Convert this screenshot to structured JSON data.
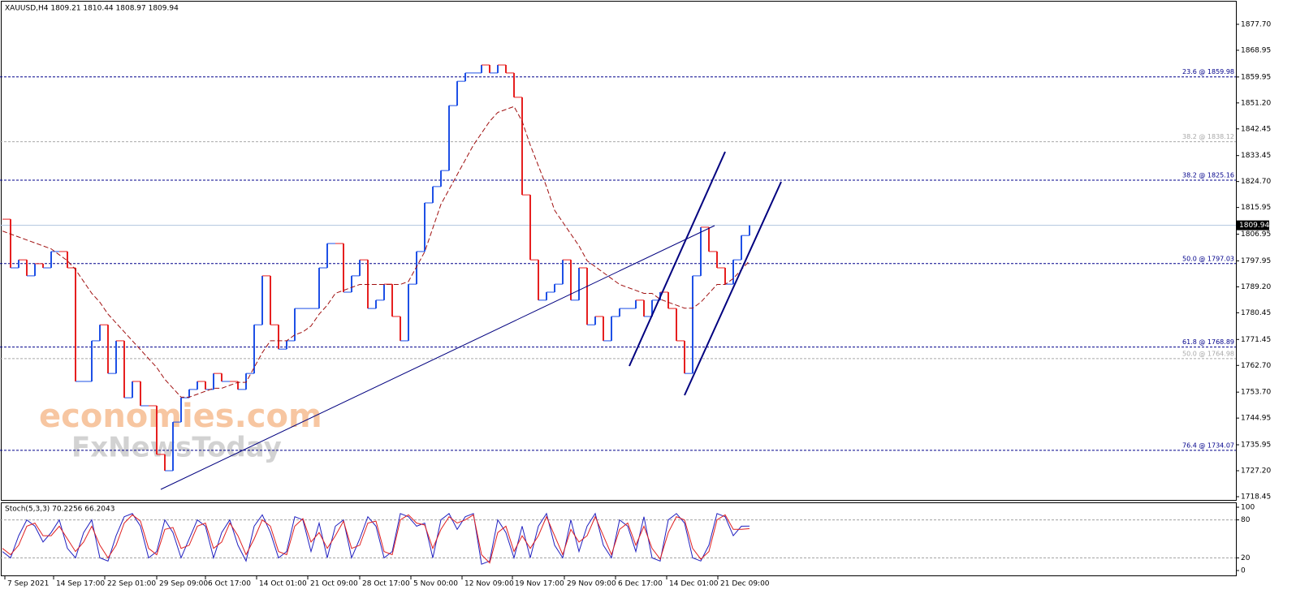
{
  "chart_data": [
    {
      "type": "line",
      "title": "XAUUSD,H4  1809.21 1810.44 1808.97 1809.94",
      "annotations": [
        "economies.com",
        "FxNewsToday"
      ],
      "x": [
        0,
        1,
        2,
        3,
        4,
        5,
        6,
        7,
        8,
        9,
        10,
        11,
        12,
        13,
        14,
        15,
        16,
        17,
        18,
        19,
        20,
        21,
        22,
        23,
        24,
        25,
        26,
        27,
        28,
        29,
        30,
        31,
        32,
        33,
        34,
        35,
        36,
        37,
        38,
        39,
        40,
        41,
        42,
        43,
        44,
        45,
        46,
        47,
        48,
        49,
        50,
        51,
        52,
        53,
        54,
        55,
        56,
        57,
        58,
        59,
        60,
        61,
        62,
        63,
        64,
        65,
        66,
        67,
        68,
        69,
        70,
        71,
        72,
        73,
        74,
        75,
        76,
        77,
        78,
        79,
        80,
        81,
        82,
        83,
        84,
        85,
        86,
        87,
        88,
        89,
        90,
        91,
        92
      ],
      "xlim": [
        -0.3,
        151.9
      ],
      "xticks": [
        {
          "value": 0.3,
          "label": "7 Sep 2021"
        },
        {
          "value": 6.3,
          "label": "14 Sep 17:00"
        },
        {
          "value": 12.6,
          "label": "22 Sep 01:00"
        },
        {
          "value": 19,
          "label": "29 Sep 09:00"
        },
        {
          "value": 25,
          "label": "6 Oct 17:00"
        },
        {
          "value": 31.3,
          "label": "14 Oct 01:00"
        },
        {
          "value": 37.6,
          "label": "21 Oct 09:00"
        },
        {
          "value": 44,
          "label": "28 Oct 17:00"
        },
        {
          "value": 50.3,
          "label": "5 Nov 00:00"
        },
        {
          "value": 56.6,
          "label": "12 Nov 09:00"
        },
        {
          "value": 62.8,
          "label": "19 Nov 17:00"
        },
        {
          "value": 69.2,
          "label": "29 Nov 09:00"
        },
        {
          "value": 75.5,
          "label": "6 Dec 17:00"
        },
        {
          "value": 81.8,
          "label": "14 Dec 01:00"
        },
        {
          "value": 88.1,
          "label": "21 Dec 09:00"
        }
      ],
      "ylim": [
        1717.08,
        1885.9
      ],
      "yticks": [
        {
          "value": 1877.7,
          "label": "1877.70"
        },
        1868.95,
        1859.95,
        {
          "value": 1851.2,
          "label": "1851.20"
        },
        1842.45,
        1833.45,
        {
          "value": 1824.7,
          "label": "1824.70"
        },
        1815.95,
        1806.95,
        1797.95,
        {
          "value": 1789.2,
          "label": "1789.20"
        },
        1780.45,
        1771.45,
        {
          "value": 1762.7,
          "label": "1762.70"
        },
        {
          "value": 1753.7,
          "label": "1753.70"
        },
        1744.95,
        1735.95,
        {
          "value": 1727.2,
          "label": "1727.20"
        },
        1718.45
      ],
      "series": [
        {
          "style": "bars",
          "up_color": "#1e50e6",
          "down_color": "#e62020",
          "values": [
            1812.0,
            1795.6,
            1798.3,
            1792.9,
            1797.0,
            1795.6,
            1801.1,
            1801.1,
            1795.6,
            1757.3,
            1757.3,
            1771.0,
            1776.4,
            1760.0,
            1771.0,
            1751.8,
            1757.3,
            1749.1,
            1749.1,
            1732.7,
            1727.2,
            1743.6,
            1751.8,
            1754.6,
            1757.3,
            1754.6,
            1760.0,
            1757.3,
            1757.3,
            1754.6,
            1760.0,
            1776.4,
            1792.9,
            1776.4,
            1768.2,
            1771.0,
            1781.9,
            1781.9,
            1781.9,
            1795.6,
            1803.8,
            1803.8,
            1787.4,
            1792.9,
            1798.3,
            1781.9,
            1784.7,
            1790.1,
            1779.2,
            1771.0,
            1790.1,
            1801.1,
            1817.5,
            1823.0,
            1828.4,
            1850.3,
            1858.5,
            1861.3,
            1861.3,
            1864.0,
            1861.3,
            1864.0,
            1861.3,
            1853.1,
            1820.2,
            1798.3,
            1784.7,
            1787.4,
            1790.1,
            1798.3,
            1784.7,
            1795.6,
            1776.4,
            1779.2,
            1771.0,
            1779.2,
            1781.9,
            1781.9,
            1784.7,
            1779.2,
            1784.7,
            1787.4,
            1781.9,
            1771.0,
            1760.0,
            1792.9,
            1809.3,
            1801.1,
            1795.6,
            1790.1,
            1798.3,
            1806.5,
            1809.94
          ]
        },
        {
          "style": "dashed",
          "color": "#a01010",
          "values": [
            1808,
            1807,
            1806,
            1805,
            1804,
            1803,
            1802,
            1800,
            1798,
            1795,
            1791,
            1787,
            1784,
            1780,
            1777,
            1774,
            1771,
            1768,
            1765,
            1762,
            1758,
            1755,
            1752,
            1752,
            1753,
            1754,
            1755,
            1755,
            1756,
            1757,
            1757,
            1762,
            1767,
            1771,
            1771,
            1771,
            1773,
            1774,
            1776,
            1780,
            1783,
            1787,
            1788,
            1789,
            1790,
            1790,
            1790,
            1790,
            1790,
            1790,
            1791,
            1796,
            1801,
            1809,
            1817,
            1822,
            1827,
            1832,
            1837,
            1841,
            1845,
            1848,
            1849,
            1850,
            1845,
            1837,
            1830,
            1823,
            1815,
            1811,
            1807,
            1803,
            1798,
            1796,
            1794,
            1792,
            1790,
            1789,
            1788,
            1787,
            1787,
            1785,
            1784,
            1783,
            1782,
            1782,
            1784,
            1787,
            1790,
            1790,
            1792,
            1795,
            1798
          ]
        }
      ],
      "levels": [
        {
          "value": 1859.98,
          "label": "23.6 @ 1859.98",
          "color": "#00008b"
        },
        {
          "value": 1838.12,
          "label": "38.2 @ 1838.12",
          "color": "#a9a9a9"
        },
        {
          "value": 1825.16,
          "label": "38.2 @ 1825.16",
          "color": "#00008b"
        },
        {
          "value": 1797.03,
          "label": "50.0 @ 1797.03",
          "color": "#00008b"
        },
        {
          "value": 1768.89,
          "label": "61.8 @ 1768.89",
          "color": "#00008b"
        },
        {
          "value": 1764.98,
          "label": "50.0 @ 1764.98",
          "color": "#a9a9a9"
        },
        {
          "value": 1734.07,
          "label": "76.4 @ 1734.07",
          "color": "#00008b"
        }
      ],
      "last": {
        "value": 1809.94,
        "label": "1809.94"
      }
    },
    {
      "type": "line",
      "title": "Stoch(5,3,3) 70.2256 66.2043",
      "ylim": [
        -9,
        106.4
      ],
      "yticks": [
        100,
        80,
        20,
        0
      ],
      "levels": [
        {
          "value": 80,
          "color": "#a0a0a0"
        },
        {
          "value": 20,
          "color": "#a0a0a0"
        }
      ],
      "series": [
        {
          "style": "solid",
          "color": "#2020c0",
          "values": [
            30,
            20,
            55,
            80,
            70,
            45,
            60,
            80,
            35,
            20,
            60,
            80,
            20,
            15,
            55,
            85,
            90,
            70,
            20,
            30,
            80,
            60,
            20,
            50,
            80,
            70,
            20,
            60,
            80,
            40,
            15,
            70,
            88,
            60,
            20,
            30,
            85,
            80,
            30,
            75,
            20,
            70,
            80,
            20,
            50,
            85,
            70,
            20,
            30,
            90,
            85,
            70,
            75,
            20,
            80,
            90,
            65,
            85,
            90,
            10,
            15,
            80,
            60,
            20,
            70,
            20,
            70,
            90,
            40,
            20,
            80,
            30,
            70,
            90,
            40,
            20,
            80,
            70,
            30,
            85,
            20,
            15,
            80,
            90,
            75,
            20,
            15,
            40,
            90,
            85,
            55,
            70,
            70.2256
          ]
        },
        {
          "style": "solid",
          "color": "#e02020",
          "values": [
            35,
            25,
            40,
            70,
            75,
            55,
            55,
            70,
            50,
            30,
            45,
            70,
            40,
            20,
            40,
            75,
            88,
            78,
            35,
            25,
            65,
            68,
            35,
            40,
            70,
            75,
            35,
            45,
            75,
            55,
            25,
            50,
            80,
            70,
            30,
            25,
            70,
            82,
            45,
            60,
            35,
            55,
            78,
            35,
            40,
            75,
            78,
            30,
            25,
            80,
            88,
            75,
            72,
            35,
            65,
            85,
            75,
            80,
            88,
            25,
            12,
            60,
            70,
            30,
            55,
            35,
            55,
            85,
            55,
            25,
            65,
            45,
            55,
            85,
            55,
            25,
            65,
            75,
            40,
            70,
            35,
            18,
            60,
            85,
            80,
            35,
            18,
            30,
            80,
            88,
            65,
            65,
            66.2043
          ]
        }
      ]
    }
  ]
}
